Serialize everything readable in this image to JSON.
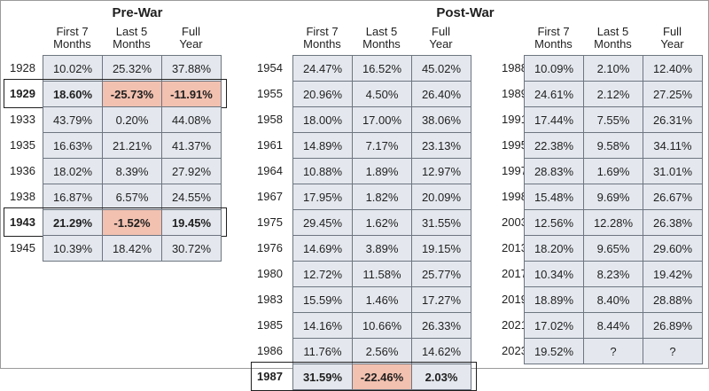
{
  "sections": {
    "pre_war": {
      "title": "Pre-War"
    },
    "post_war": {
      "title": "Post-War"
    }
  },
  "headers": [
    "First 7\nMonths",
    "Last 5\nMonths",
    "Full\nYear"
  ],
  "tables": [
    {
      "id": "pre-war",
      "rows": [
        {
          "year": "1928",
          "values": [
            "10.02%",
            "25.32%",
            "37.88%"
          ],
          "bold": false,
          "highlight": []
        },
        {
          "year": "1929",
          "values": [
            "18.60%",
            "-25.73%",
            "-11.91%"
          ],
          "bold": true,
          "highlight": [
            1,
            2
          ]
        },
        {
          "year": "1933",
          "values": [
            "43.79%",
            "0.20%",
            "44.08%"
          ],
          "bold": false,
          "highlight": []
        },
        {
          "year": "1935",
          "values": [
            "16.63%",
            "21.21%",
            "41.37%"
          ],
          "bold": false,
          "highlight": []
        },
        {
          "year": "1936",
          "values": [
            "18.02%",
            "8.39%",
            "27.92%"
          ],
          "bold": false,
          "highlight": []
        },
        {
          "year": "1938",
          "values": [
            "16.87%",
            "6.57%",
            "24.55%"
          ],
          "bold": false,
          "highlight": []
        },
        {
          "year": "1943",
          "values": [
            "21.29%",
            "-1.52%",
            "19.45%"
          ],
          "bold": true,
          "highlight": [
            1
          ]
        },
        {
          "year": "1945",
          "values": [
            "10.39%",
            "18.42%",
            "30.72%"
          ],
          "bold": false,
          "highlight": []
        }
      ]
    },
    {
      "id": "post-war-a",
      "rows": [
        {
          "year": "1954",
          "values": [
            "24.47%",
            "16.52%",
            "45.02%"
          ],
          "bold": false,
          "highlight": []
        },
        {
          "year": "1955",
          "values": [
            "20.96%",
            "4.50%",
            "26.40%"
          ],
          "bold": false,
          "highlight": []
        },
        {
          "year": "1958",
          "values": [
            "18.00%",
            "17.00%",
            "38.06%"
          ],
          "bold": false,
          "highlight": []
        },
        {
          "year": "1961",
          "values": [
            "14.89%",
            "7.17%",
            "23.13%"
          ],
          "bold": false,
          "highlight": []
        },
        {
          "year": "1964",
          "values": [
            "10.88%",
            "1.89%",
            "12.97%"
          ],
          "bold": false,
          "highlight": []
        },
        {
          "year": "1967",
          "values": [
            "17.95%",
            "1.82%",
            "20.09%"
          ],
          "bold": false,
          "highlight": []
        },
        {
          "year": "1975",
          "values": [
            "29.45%",
            "1.62%",
            "31.55%"
          ],
          "bold": false,
          "highlight": []
        },
        {
          "year": "1976",
          "values": [
            "14.69%",
            "3.89%",
            "19.15%"
          ],
          "bold": false,
          "highlight": []
        },
        {
          "year": "1980",
          "values": [
            "12.72%",
            "11.58%",
            "25.77%"
          ],
          "bold": false,
          "highlight": []
        },
        {
          "year": "1983",
          "values": [
            "15.59%",
            "1.46%",
            "17.27%"
          ],
          "bold": false,
          "highlight": []
        },
        {
          "year": "1985",
          "values": [
            "14.16%",
            "10.66%",
            "26.33%"
          ],
          "bold": false,
          "highlight": []
        },
        {
          "year": "1986",
          "values": [
            "11.76%",
            "2.56%",
            "14.62%"
          ],
          "bold": false,
          "highlight": []
        },
        {
          "year": "1987",
          "values": [
            "31.59%",
            "-22.46%",
            "2.03%"
          ],
          "bold": true,
          "highlight": [
            1
          ]
        }
      ]
    },
    {
      "id": "post-war-b",
      "rows": [
        {
          "year": "1988",
          "values": [
            "10.09%",
            "2.10%",
            "12.40%"
          ],
          "bold": false,
          "highlight": []
        },
        {
          "year": "1989",
          "values": [
            "24.61%",
            "2.12%",
            "27.25%"
          ],
          "bold": false,
          "highlight": []
        },
        {
          "year": "1991",
          "values": [
            "17.44%",
            "7.55%",
            "26.31%"
          ],
          "bold": false,
          "highlight": []
        },
        {
          "year": "1995",
          "values": [
            "22.38%",
            "9.58%",
            "34.11%"
          ],
          "bold": false,
          "highlight": []
        },
        {
          "year": "1997",
          "values": [
            "28.83%",
            "1.69%",
            "31.01%"
          ],
          "bold": false,
          "highlight": []
        },
        {
          "year": "1998",
          "values": [
            "15.48%",
            "9.69%",
            "26.67%"
          ],
          "bold": false,
          "highlight": []
        },
        {
          "year": "2003",
          "values": [
            "12.56%",
            "12.28%",
            "26.38%"
          ],
          "bold": false,
          "highlight": []
        },
        {
          "year": "2013",
          "values": [
            "18.20%",
            "9.65%",
            "29.60%"
          ],
          "bold": false,
          "highlight": []
        },
        {
          "year": "2017",
          "values": [
            "10.34%",
            "8.23%",
            "19.42%"
          ],
          "bold": false,
          "highlight": []
        },
        {
          "year": "2019",
          "values": [
            "18.89%",
            "8.40%",
            "28.88%"
          ],
          "bold": false,
          "highlight": []
        },
        {
          "year": "2021",
          "values": [
            "17.02%",
            "8.44%",
            "26.89%"
          ],
          "bold": false,
          "highlight": []
        },
        {
          "year": "2023",
          "values": [
            "19.52%",
            "?",
            "?"
          ],
          "bold": false,
          "highlight": []
        }
      ]
    }
  ],
  "colors": {
    "cell_bg": "#e4e8ee",
    "highlight_bg": "#f2c1b0",
    "border": "#6d7580"
  }
}
